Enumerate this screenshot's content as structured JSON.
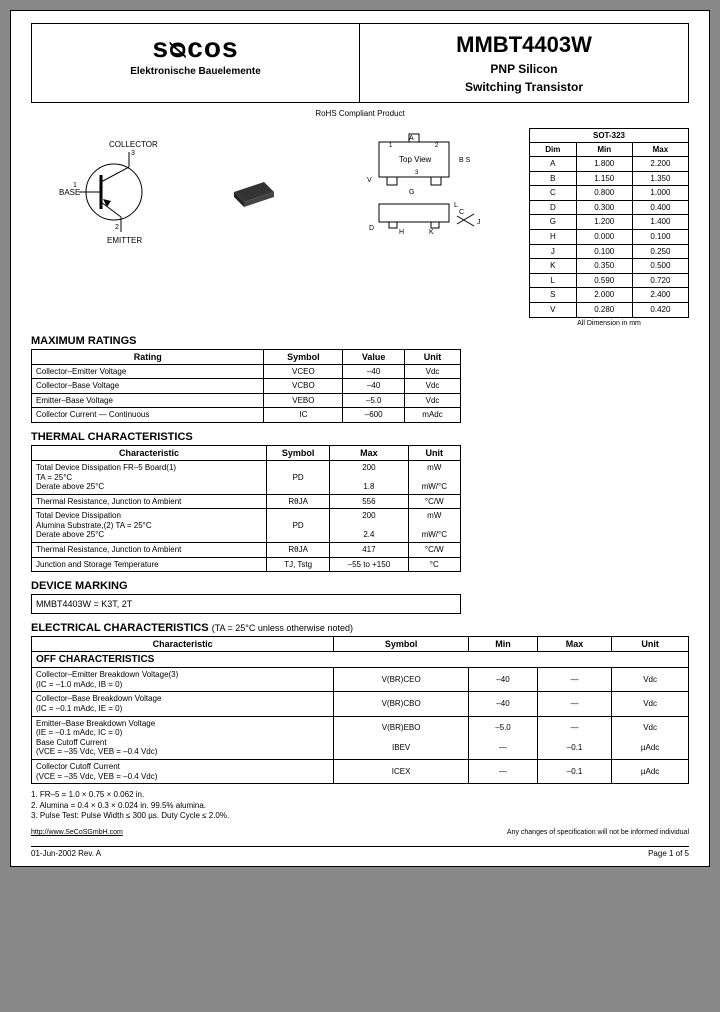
{
  "header": {
    "logo": "sᴓcos",
    "logo_sub": "Elektronische Bauelemente",
    "part": "MMBT4403W",
    "sub1": "PNP Silicon",
    "sub2": "Switching Transistor"
  },
  "rohs": "RoHS Compliant Product",
  "pkg": {
    "title": "SOT-323",
    "cols": [
      "Dim",
      "Min",
      "Max"
    ],
    "rows": [
      [
        "A",
        "1.800",
        "2.200"
      ],
      [
        "B",
        "1.150",
        "1.350"
      ],
      [
        "C",
        "0.800",
        "1.000"
      ],
      [
        "D",
        "0.300",
        "0.400"
      ],
      [
        "G",
        "1.200",
        "1.400"
      ],
      [
        "H",
        "0.000",
        "0.100"
      ],
      [
        "J",
        "0.100",
        "0.250"
      ],
      [
        "K",
        "0.350",
        "0.500"
      ],
      [
        "L",
        "0.590",
        "0.720"
      ],
      [
        "S",
        "2.000",
        "2.400"
      ],
      [
        "V",
        "0.280",
        "0.420"
      ]
    ],
    "note": "All Dimension in mm"
  },
  "diag": {
    "collector": "COLLECTOR",
    "base": "BASE",
    "emitter": "EMITTER",
    "topview": "Top View"
  },
  "max": {
    "title": "MAXIMUM RATINGS",
    "cols": [
      "Rating",
      "Symbol",
      "Value",
      "Unit"
    ],
    "rows": [
      [
        "Collector–Emitter Voltage",
        "VCEO",
        "–40",
        "Vdc"
      ],
      [
        "Collector–Base Voltage",
        "VCBO",
        "–40",
        "Vdc"
      ],
      [
        "Emitter–Base Voltage",
        "VEBO",
        "–5.0",
        "Vdc"
      ],
      [
        "Collector Current — Continuous",
        "IC",
        "–600",
        "mAdc"
      ]
    ]
  },
  "thermal": {
    "title": "THERMAL CHARACTERISTICS",
    "cols": [
      "Characteristic",
      "Symbol",
      "Max",
      "Unit"
    ],
    "rows": [
      [
        "Total Device Dissipation FR–5 Board(1)\n  TA = 25°C\n  Derate above 25°C",
        "PD",
        "200\n\n1.8",
        "mW\n\nmW/°C"
      ],
      [
        "Thermal Resistance, Junction to Ambient",
        "RθJA",
        "556",
        "°C/W"
      ],
      [
        "Total Device Dissipation\n  Alumina Substrate,(2) TA = 25°C\n  Derate above 25°C",
        "PD",
        "200\n\n2.4",
        "mW\n\nmW/°C"
      ],
      [
        "Thermal Resistance, Junction to Ambient",
        "RθJA",
        "417",
        "°C/W"
      ],
      [
        "Junction and Storage Temperature",
        "TJ, Tstg",
        "–55 to +150",
        "°C"
      ]
    ]
  },
  "marking": {
    "title": "DEVICE MARKING",
    "text": "MMBT4403W = K3T, 2T"
  },
  "elec": {
    "title": "ELECTRICAL CHARACTERISTICS",
    "cond": "(TA = 25°C unless otherwise noted)",
    "cols": [
      "Characteristic",
      "Symbol",
      "Min",
      "Max",
      "Unit"
    ],
    "subhead": "OFF CHARACTERISTICS",
    "rows": [
      [
        "Collector–Emitter Breakdown Voltage(3)\n  (IC = –1.0 mAdc, IB = 0)",
        "V(BR)CEO",
        "–40",
        "—",
        "Vdc"
      ],
      [
        "Collector–Base Breakdown Voltage\n  (IC = –0.1 mAdc, IE = 0)",
        "V(BR)CBO",
        "–40",
        "—",
        "Vdc"
      ],
      [
        "Emitter–Base Breakdown Voltage\n  (IE = –0.1 mAdc, IC = 0)\nBase Cutoff Current\n  (VCE = –35 Vdc, VEB = –0.4 Vdc)",
        "V(BR)EBO\n\nIBEV",
        "–5.0\n\n—",
        "—\n\n–0.1",
        "Vdc\n\nµAdc"
      ],
      [
        "Collector Cutoff Current\n  (VCE = –35 Vdc, VEB = –0.4 Vdc)",
        "ICEX",
        "—",
        "–0.1",
        "µAdc"
      ]
    ]
  },
  "notes": [
    "1. FR–5 = 1.0 × 0.75 × 0.062 in.",
    "2. Alumina = 0.4 × 0.3 × 0.024 in. 99.5% alumina.",
    "3. Pulse Test: Pulse Width ≤ 300 µs. Duty Cycle ≤ 2.0%."
  ],
  "footer": {
    "url": "http://www.SeCoSGmbH.com",
    "disc": "Any changes of specification will not be informed individual"
  },
  "pagefoot": {
    "date": "01-Jun-2002 Rev. A",
    "page": "Page 1 of 5"
  }
}
